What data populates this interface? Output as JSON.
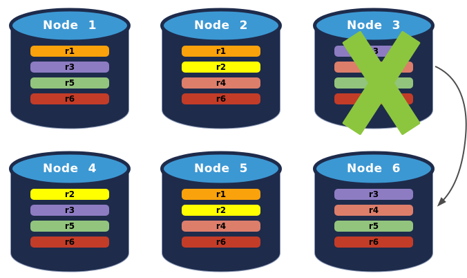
{
  "diagram": {
    "colors": {
      "background": "#FFFFFF",
      "cylinder_body": "#1E2B4B",
      "cylinder_top": "#3C98D3",
      "node_title_text": "#FFFFFF",
      "bar_text": "#000000",
      "failure_mark": "#8CC63E",
      "arrow": "#4D4D4D"
    },
    "replica_colors": {
      "r1": "#FAA20B",
      "r2": "#FFFF00",
      "r3": "#8E7CC3",
      "r4": "#DD7E6B",
      "r5": "#93C47D",
      "r6": "#C33C28"
    },
    "nodes": [
      {
        "label": "Node 1",
        "replicas": [
          "r1",
          "r3",
          "r5",
          "r6"
        ],
        "failed": false
      },
      {
        "label": "Node 2",
        "replicas": [
          "r1",
          "r2",
          "r4",
          "r6"
        ],
        "failed": false
      },
      {
        "label": "Node 3",
        "replicas": [
          "r3",
          "r4",
          "r5",
          "r6"
        ],
        "failed": true
      },
      {
        "label": "Node 4",
        "replicas": [
          "r2",
          "r3",
          "r5",
          "r6"
        ],
        "failed": false
      },
      {
        "label": "Node 5",
        "replicas": [
          "r1",
          "r2",
          "r4",
          "r6"
        ],
        "failed": false
      },
      {
        "label": "Node 6",
        "replicas": [
          "r3",
          "r4",
          "r5",
          "r6"
        ],
        "failed": false
      }
    ],
    "failover_arrow": {
      "from": "Node 3",
      "to": "Node 6",
      "color": "#4D4D4D"
    }
  }
}
